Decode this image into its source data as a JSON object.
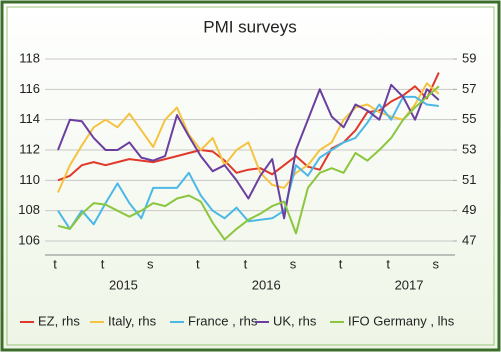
{
  "chart_data": {
    "type": "line",
    "title": "PMI surveys",
    "categories": [
      "t",
      null,
      null,
      null,
      "t",
      null,
      null,
      null,
      "s",
      null,
      null,
      null,
      "t",
      null,
      null,
      null,
      "t",
      null,
      null,
      null,
      "s",
      null,
      null,
      null,
      "t",
      null,
      null,
      null,
      "t",
      null,
      null,
      null,
      "s"
    ],
    "year_labels": [
      "2015",
      "2016",
      "2017"
    ],
    "ylim": [
      106,
      118
    ],
    "yticks": [
      106,
      108,
      110,
      112,
      114,
      116,
      118
    ],
    "y2lim": [
      47,
      59
    ],
    "y2ticks": [
      47,
      49,
      51,
      53,
      55,
      57,
      59
    ],
    "grid": true,
    "series": [
      {
        "name": "EZ, rhs",
        "color": "#e0392b",
        "axis": "y2",
        "values": [
          51.0,
          51.3,
          52.0,
          52.2,
          52.0,
          52.2,
          52.4,
          52.3,
          52.2,
          52.4,
          52.6,
          52.8,
          53.0,
          52.9,
          52.3,
          51.5,
          51.7,
          51.8,
          51.4,
          52.0,
          52.6,
          51.9,
          51.7,
          53.1,
          53.5,
          54.3,
          55.5,
          55.6,
          56.2,
          56.6,
          57.2,
          56.4,
          58.1
        ]
      },
      {
        "name": "Italy, rhs",
        "color": "#f5c342",
        "axis": "y2",
        "values": [
          50.2,
          52.0,
          53.3,
          54.5,
          55.0,
          54.5,
          55.4,
          54.3,
          53.2,
          55.0,
          55.8,
          54.0,
          53.0,
          53.8,
          52.0,
          53.0,
          53.5,
          51.5,
          50.7,
          50.5,
          51.5,
          52.0,
          53.0,
          53.5,
          55.0,
          55.8,
          56.0,
          55.5,
          55.2,
          55.0,
          56.0,
          57.4,
          56.7
        ]
      },
      {
        "name": "France , rhs",
        "color": "#4cb8e8",
        "axis": "y2",
        "values": [
          49.0,
          47.8,
          49.0,
          48.1,
          49.5,
          50.8,
          49.5,
          48.5,
          50.5,
          50.5,
          50.5,
          51.5,
          50.0,
          49.0,
          48.5,
          49.2,
          48.3,
          48.4,
          48.5,
          49.0,
          52.0,
          51.3,
          52.5,
          53.0,
          53.5,
          53.8,
          54.8,
          56.0,
          55.0,
          56.5,
          56.5,
          56.0,
          55.9
        ]
      },
      {
        "name": "UK, rhs",
        "color": "#6b3fa0",
        "axis": "y2",
        "values": [
          53.0,
          55.0,
          54.9,
          53.8,
          53.0,
          53.0,
          53.5,
          52.5,
          52.3,
          52.6,
          55.3,
          53.9,
          52.6,
          51.6,
          52.0,
          51.0,
          49.8,
          51.3,
          52.4,
          48.5,
          53.0,
          55.0,
          57.0,
          55.2,
          54.5,
          56.0,
          55.6,
          55.0,
          57.3,
          56.5,
          55.0,
          57.0,
          56.3
        ]
      },
      {
        "name": "IFO Germany , lhs",
        "color": "#8cc63f",
        "axis": "y",
        "values": [
          107.0,
          106.8,
          107.8,
          108.5,
          108.4,
          108.0,
          107.6,
          108.0,
          108.5,
          108.3,
          108.8,
          109.0,
          108.6,
          107.2,
          106.1,
          106.8,
          107.4,
          107.8,
          108.3,
          108.6,
          106.5,
          109.5,
          110.5,
          110.8,
          110.5,
          111.8,
          111.3,
          112.0,
          112.8,
          114.0,
          114.8,
          115.5,
          116.2
        ]
      }
    ]
  }
}
